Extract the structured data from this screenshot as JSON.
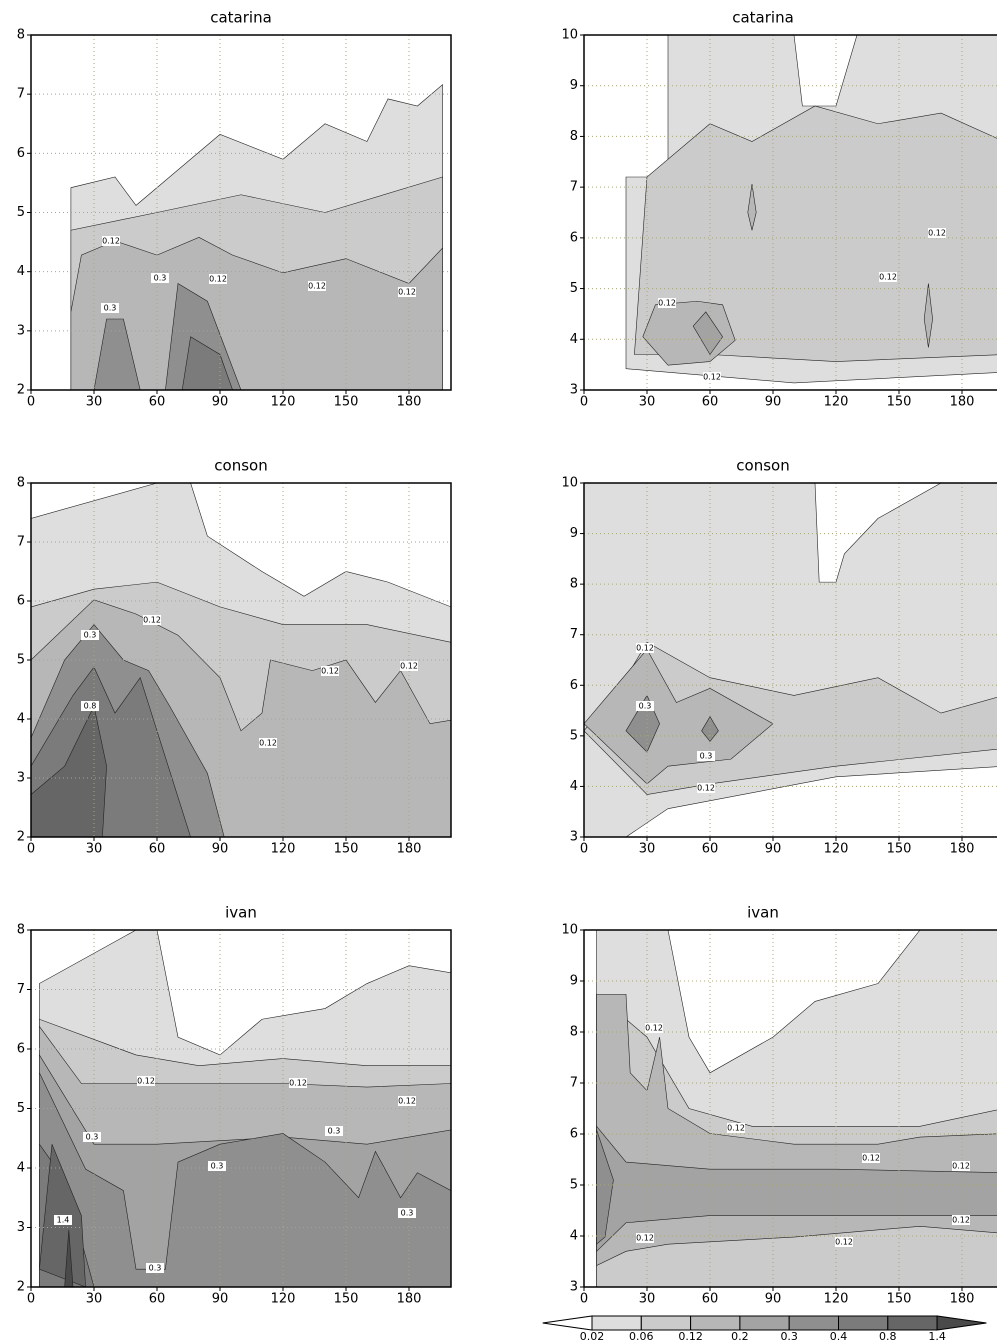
{
  "chart_data": [
    {
      "type": "contour",
      "title": "catarina",
      "xlim": [
        0,
        200
      ],
      "ylim": [
        2,
        8
      ],
      "xticks": [
        0,
        30,
        60,
        90,
        120,
        150,
        180
      ],
      "yticks": [
        2,
        3,
        4,
        5,
        6,
        7,
        8
      ],
      "grid": true,
      "contour_labels": [
        0.12,
        0.3,
        0.12,
        0.12,
        0.12,
        0.3
      ]
    },
    {
      "type": "contour",
      "title": "catarina",
      "xlim": [
        0,
        200
      ],
      "ylim": [
        3,
        10
      ],
      "xticks": [
        0,
        30,
        60,
        90,
        120,
        150,
        180
      ],
      "yticks": [
        3,
        4,
        5,
        6,
        7,
        8,
        9,
        10
      ],
      "grid": true,
      "contour_labels": [
        0.12,
        0.12,
        0.12,
        0.12
      ]
    },
    {
      "type": "contour",
      "title": "conson",
      "xlim": [
        0,
        200
      ],
      "ylim": [
        2,
        8
      ],
      "xticks": [
        0,
        30,
        60,
        90,
        120,
        150,
        180
      ],
      "yticks": [
        2,
        3,
        4,
        5,
        6,
        7,
        8
      ],
      "grid": true,
      "contour_labels": [
        0.12,
        0.3,
        0.12,
        0.12,
        0.8,
        0.12
      ]
    },
    {
      "type": "contour",
      "title": "conson",
      "xlim": [
        0,
        200
      ],
      "ylim": [
        3,
        10
      ],
      "xticks": [
        0,
        30,
        60,
        90,
        120,
        150,
        180
      ],
      "yticks": [
        3,
        4,
        5,
        6,
        7,
        8,
        9,
        10
      ],
      "grid": true,
      "contour_labels": [
        0.12,
        0.3,
        0.3,
        0.12
      ]
    },
    {
      "type": "contour",
      "title": "ivan",
      "xlim": [
        0,
        200
      ],
      "ylim": [
        2,
        8
      ],
      "xticks": [
        0,
        30,
        60,
        90,
        120,
        150,
        180
      ],
      "yticks": [
        2,
        3,
        4,
        5,
        6,
        7,
        8
      ],
      "grid": true,
      "contour_labels": [
        0.12,
        0.12,
        0.12,
        0.3,
        0.3,
        0.3,
        1.4,
        0.3,
        0.3
      ]
    },
    {
      "type": "contour",
      "title": "ivan",
      "xlim": [
        0,
        200
      ],
      "ylim": [
        3,
        10
      ],
      "xticks": [
        0,
        30,
        60,
        90,
        120,
        150,
        180
      ],
      "yticks": [
        3,
        4,
        5,
        6,
        7,
        8,
        9,
        10
      ],
      "grid": true,
      "contour_labels": [
        0.12,
        0.12,
        0.12,
        0.12,
        0.12,
        0.12,
        0.12
      ]
    }
  ],
  "colorbar": {
    "levels": [
      0.02,
      0.06,
      0.12,
      0.2,
      0.3,
      0.4,
      0.8,
      1.4
    ],
    "colors": [
      "#ffffff",
      "#dedede",
      "#cbcbcb",
      "#b7b7b7",
      "#a3a3a3",
      "#8f8f8f",
      "#7b7b7b",
      "#666666",
      "#4a4a4a"
    ]
  }
}
